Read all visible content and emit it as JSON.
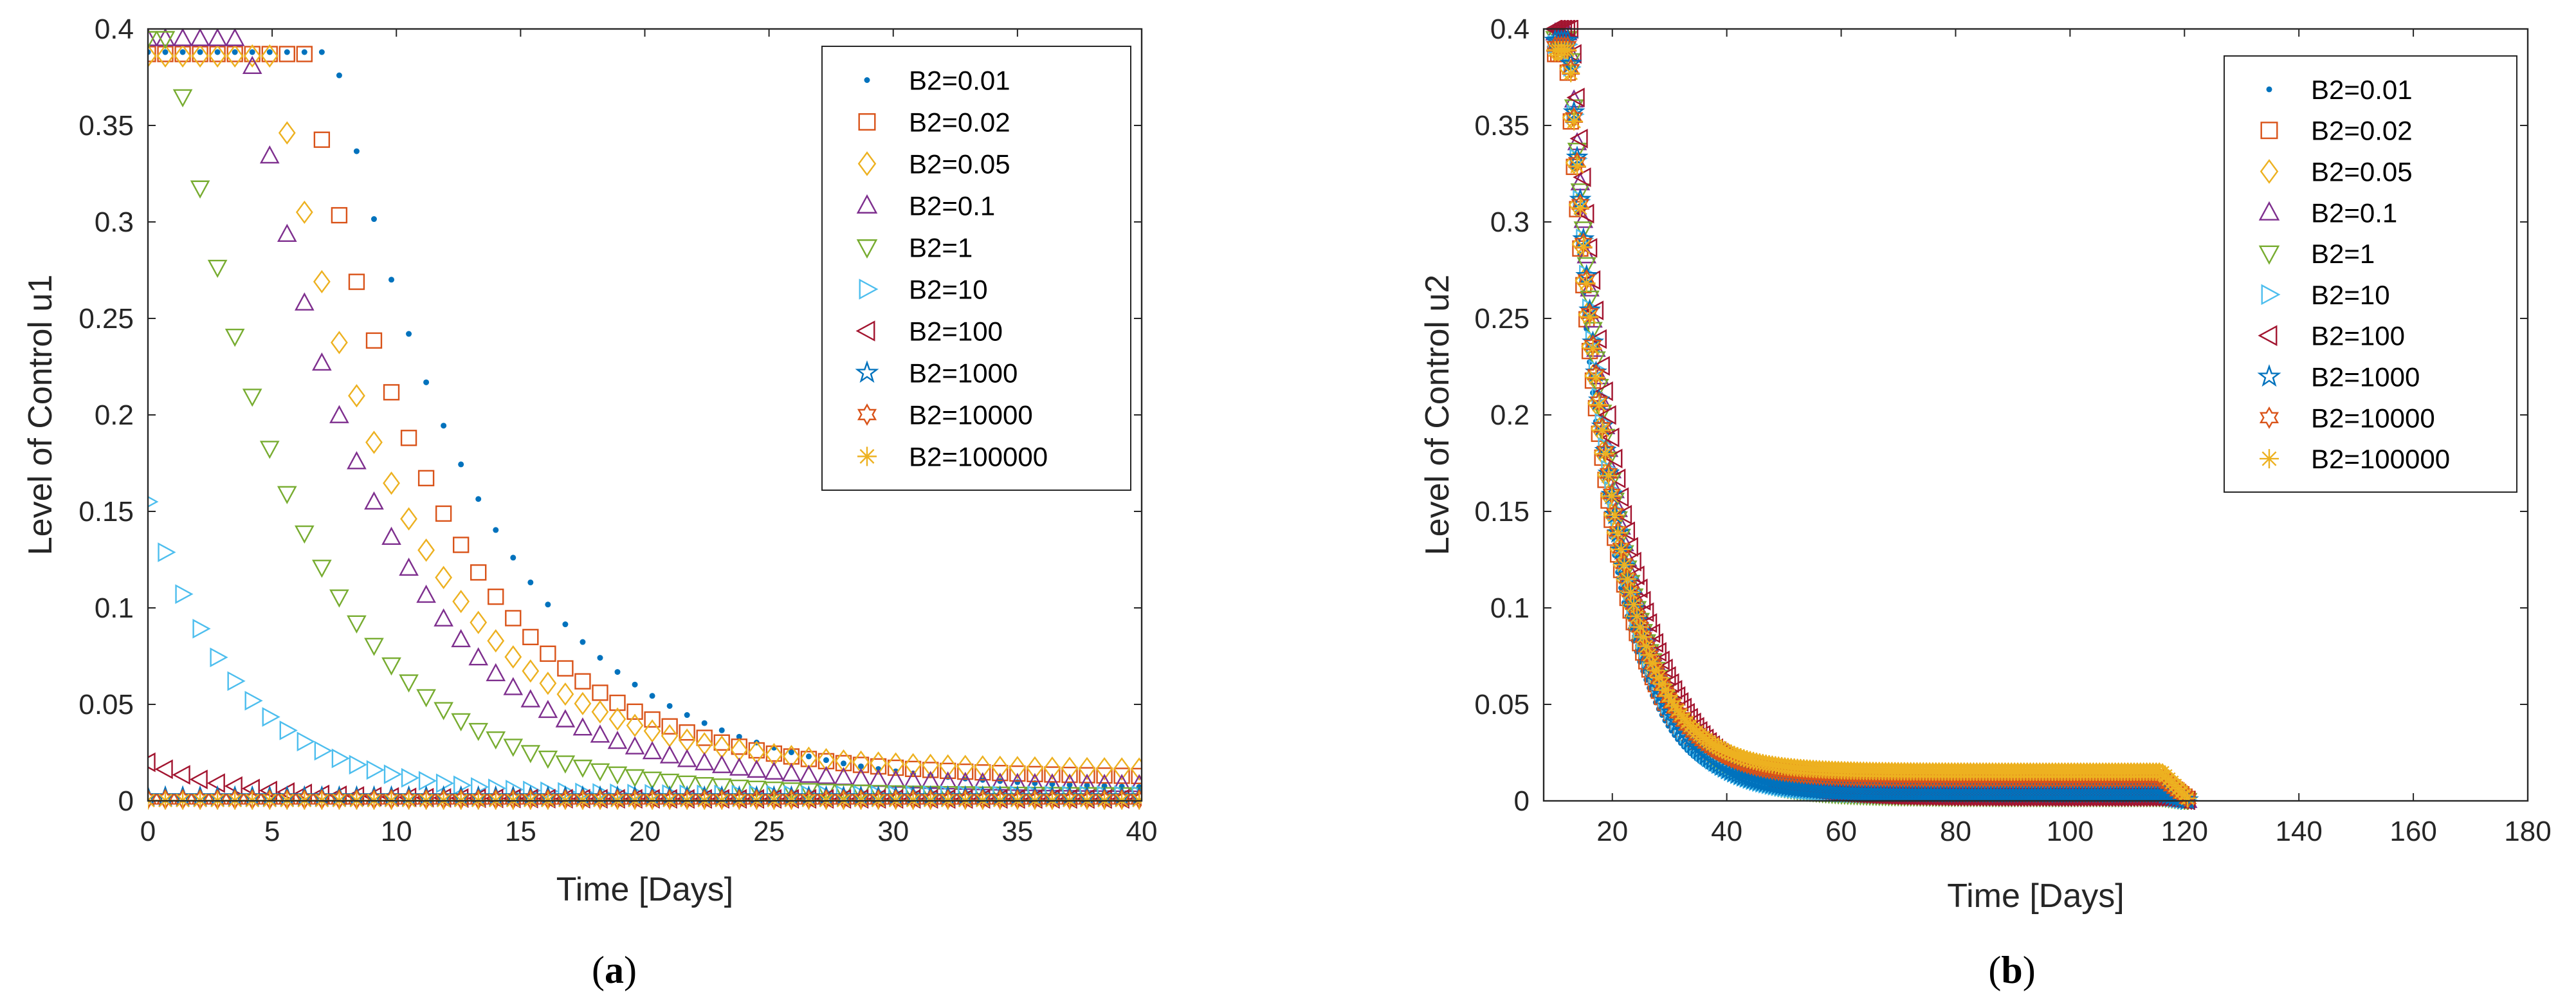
{
  "marker_styles": [
    {
      "name": "B2=0.01",
      "color": "#0072BD",
      "marker": "dot"
    },
    {
      "name": "B2=0.02",
      "color": "#D95319",
      "marker": "square"
    },
    {
      "name": "B2=0.05",
      "color": "#EDB120",
      "marker": "diamond"
    },
    {
      "name": "B2=0.1",
      "color": "#7E2F8E",
      "marker": "triangle-up"
    },
    {
      "name": "B2=1",
      "color": "#77AC30",
      "marker": "triangle-down"
    },
    {
      "name": "B2=10",
      "color": "#4DBEEE",
      "marker": "triangle-right"
    },
    {
      "name": "B2=100",
      "color": "#A2142F",
      "marker": "triangle-left"
    },
    {
      "name": "B2=1000",
      "color": "#0072BD",
      "marker": "pentagram"
    },
    {
      "name": "B2=10000",
      "color": "#D95319",
      "marker": "hexagram"
    },
    {
      "name": "B2=100000",
      "color": "#EDB120",
      "marker": "asterisk"
    }
  ],
  "chart_data": [
    {
      "id": "a",
      "type": "scatter",
      "caption": "(a)",
      "caption_letter": "a",
      "xlabel": "Time [Days]",
      "ylabel": "Level of Control u1",
      "xlim": [
        0,
        40
      ],
      "ylim": [
        0,
        0.4
      ],
      "xticks": [
        "0",
        "5",
        "10",
        "15",
        "20",
        "25",
        "30",
        "35",
        "40"
      ],
      "yticks": [
        "0",
        "0.05",
        "0.1",
        "0.15",
        "0.2",
        "0.25",
        "0.3",
        "0.35",
        "0.4"
      ],
      "legend": "top-right",
      "series": [
        {
          "name": "B2=0.01",
          "model": "plateau-decay",
          "y0": 0.388,
          "t0": 7.5,
          "rate": 0.16,
          "tail": 0.005,
          "x_start": 0,
          "x_end": 40,
          "step": 0.7
        },
        {
          "name": "B2=0.02",
          "model": "plateau-decay",
          "y0": 0.387,
          "t0": 6.3,
          "rate": 0.18,
          "tail": 0.012,
          "x_start": 0,
          "x_end": 40,
          "step": 0.7
        },
        {
          "name": "B2=0.05",
          "model": "plateau-decay",
          "y0": 0.386,
          "t0": 5.0,
          "rate": 0.19,
          "tail": 0.016,
          "x_start": 0,
          "x_end": 40,
          "step": 0.7
        },
        {
          "name": "B2=0.1",
          "model": "plateau-decay",
          "y0": 0.395,
          "t0": 4.0,
          "rate": 0.19,
          "tail": 0.008,
          "x_start": 0,
          "x_end": 40,
          "step": 0.7
        },
        {
          "name": "B2=1",
          "model": "plateau-decay",
          "y0": 0.395,
          "t0": 1.0,
          "rate": 0.2,
          "tail": 0.003,
          "x_start": 0,
          "x_end": 40,
          "step": 0.7
        },
        {
          "name": "B2=10",
          "model": "plateau-decay",
          "y0": 0.155,
          "t0": 0,
          "rate": 0.27,
          "tail": 0.003,
          "x_start": 0,
          "x_end": 40,
          "step": 0.7
        },
        {
          "name": "B2=100",
          "model": "plateau-decay",
          "y0": 0.02,
          "t0": 0,
          "rate": 0.3,
          "tail": 0.001,
          "x_start": 0,
          "x_end": 40,
          "step": 0.7
        },
        {
          "name": "B2=1000",
          "model": "constant",
          "value": 0.002,
          "x_start": 0,
          "x_end": 40,
          "step": 0.7
        },
        {
          "name": "B2=10000",
          "model": "constant",
          "value": 0.0008,
          "x_start": 0,
          "x_end": 40,
          "step": 0.7
        },
        {
          "name": "B2=100000",
          "model": "constant",
          "value": 0.0002,
          "x_start": 0,
          "x_end": 40,
          "step": 0.7
        }
      ]
    },
    {
      "id": "b",
      "type": "scatter",
      "caption": "(b)",
      "caption_letter": "b",
      "xlabel": "Time [Days]",
      "ylabel": "Level of Control u2",
      "xlim": [
        8,
        180
      ],
      "ylim": [
        0,
        0.4
      ],
      "xticks": [
        "20",
        "40",
        "60",
        "80",
        "100",
        "120",
        "140",
        "160",
        "180"
      ],
      "xtick_values": [
        20,
        40,
        60,
        80,
        100,
        120,
        140,
        160,
        180
      ],
      "yticks": [
        "0",
        "0.05",
        "0.1",
        "0.15",
        "0.2",
        "0.25",
        "0.3",
        "0.35",
        "0.4"
      ],
      "legend": "top-right",
      "series": [
        {
          "name": "B2=0.01",
          "model": "decay-drop",
          "peak": 0.39,
          "t0": 12,
          "rate": 0.135,
          "tail": 0.004,
          "end": 121,
          "x_start": 10,
          "x_end": 121,
          "step": 0.55
        },
        {
          "name": "B2=0.02",
          "model": "decay-drop",
          "peak": 0.387,
          "t0": 12,
          "rate": 0.13,
          "tail": 0.011,
          "end": 121,
          "x_start": 10,
          "x_end": 121,
          "step": 0.55
        },
        {
          "name": "B2=0.05",
          "model": "decay-drop",
          "peak": 0.389,
          "t0": 12,
          "rate": 0.13,
          "tail": 0.014,
          "end": 121,
          "x_start": 10,
          "x_end": 121,
          "step": 0.55
        },
        {
          "name": "B2=0.1",
          "model": "decay-drop",
          "peak": 0.398,
          "t0": 12.5,
          "rate": 0.115,
          "tail": 0.002,
          "end": 121,
          "x_start": 10,
          "x_end": 121,
          "step": 0.55
        },
        {
          "name": "B2=1",
          "model": "decay-drop",
          "peak": 0.395,
          "t0": 12.5,
          "rate": 0.118,
          "tail": 0.002,
          "end": 121,
          "x_start": 10,
          "x_end": 121,
          "step": 0.55
        },
        {
          "name": "B2=10",
          "model": "decay-drop",
          "peak": 0.392,
          "t0": 12.5,
          "rate": 0.122,
          "tail": 0.003,
          "end": 121,
          "x_start": 10,
          "x_end": 121,
          "step": 0.55
        },
        {
          "name": "B2=100",
          "model": "decay-drop",
          "peak": 0.4,
          "t0": 13,
          "rate": 0.11,
          "tail": 0.002,
          "end": 121,
          "x_start": 10,
          "x_end": 121,
          "step": 0.55
        },
        {
          "name": "B2=1000",
          "model": "decay-drop",
          "peak": 0.394,
          "t0": 12.5,
          "rate": 0.125,
          "tail": 0.004,
          "end": 121,
          "x_start": 10,
          "x_end": 121,
          "step": 0.55
        },
        {
          "name": "B2=10000",
          "model": "decay-drop",
          "peak": 0.391,
          "t0": 12.5,
          "rate": 0.128,
          "tail": 0.012,
          "end": 121,
          "x_start": 10,
          "x_end": 121,
          "step": 0.55
        },
        {
          "name": "B2=100000",
          "model": "decay-drop",
          "peak": 0.389,
          "t0": 12.5,
          "rate": 0.13,
          "tail": 0.015,
          "end": 121,
          "x_start": 10,
          "x_end": 121,
          "step": 0.55
        }
      ]
    }
  ]
}
